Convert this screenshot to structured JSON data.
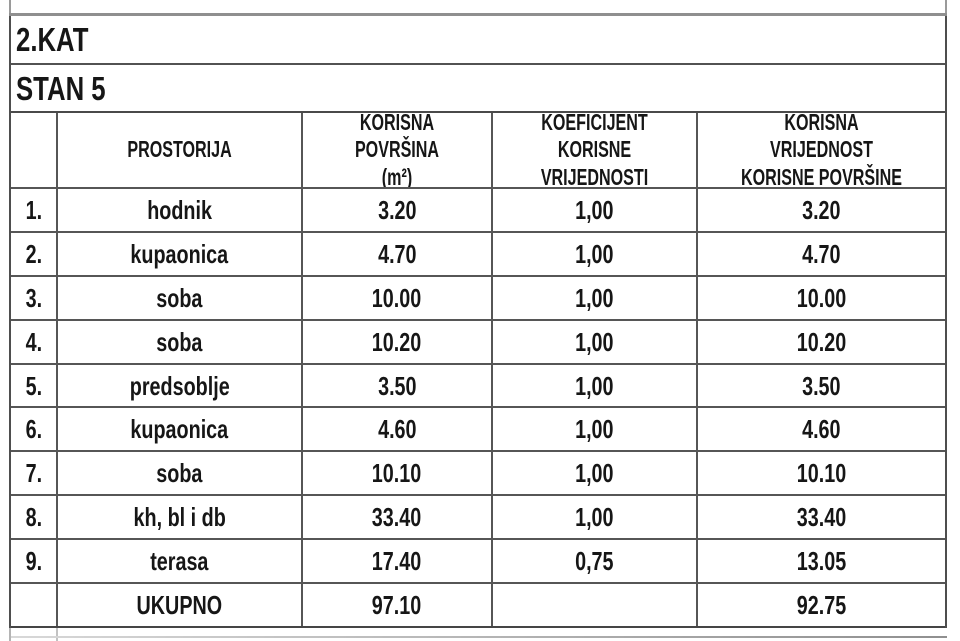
{
  "page": {
    "floor_label": "2.KAT",
    "unit_label": "STAN 5"
  },
  "table": {
    "headers": {
      "num": "",
      "room": "PROSTORIJA",
      "area": "KORISNA POVRŠINA\n(m²)",
      "coef": "KOEFICIJENT KORISNE\nVRIJEDNOSTI",
      "value": "KORISNA VRIJEDNOST\nKORISNE POVRŠINE"
    },
    "rows": [
      {
        "num": "1.",
        "room": "hodnik",
        "area": "3.20",
        "coef": "1,00",
        "value": "3.20"
      },
      {
        "num": "2.",
        "room": "kupaonica",
        "area": "4.70",
        "coef": "1,00",
        "value": "4.70"
      },
      {
        "num": "3.",
        "room": "soba",
        "area": "10.00",
        "coef": "1,00",
        "value": "10.00"
      },
      {
        "num": "4.",
        "room": "soba",
        "area": "10.20",
        "coef": "1,00",
        "value": "10.20"
      },
      {
        "num": "5.",
        "room": "predsoblje",
        "area": "3.50",
        "coef": "1,00",
        "value": "3.50"
      },
      {
        "num": "6.",
        "room": "kupaonica",
        "area": "4.60",
        "coef": "1,00",
        "value": "4.60"
      },
      {
        "num": "7.",
        "room": "soba",
        "area": "10.10",
        "coef": "1,00",
        "value": "10.10"
      },
      {
        "num": "8.",
        "room": "kh, bl i db",
        "area": "33.40",
        "coef": "1,00",
        "value": "33.40"
      },
      {
        "num": "9.",
        "room": "terasa",
        "area": "17.40",
        "coef": "0,75",
        "value": "13.05"
      }
    ],
    "total": {
      "num": "",
      "room": "UKUPNO",
      "area": "97.10",
      "coef": "",
      "value": "92.75"
    }
  }
}
